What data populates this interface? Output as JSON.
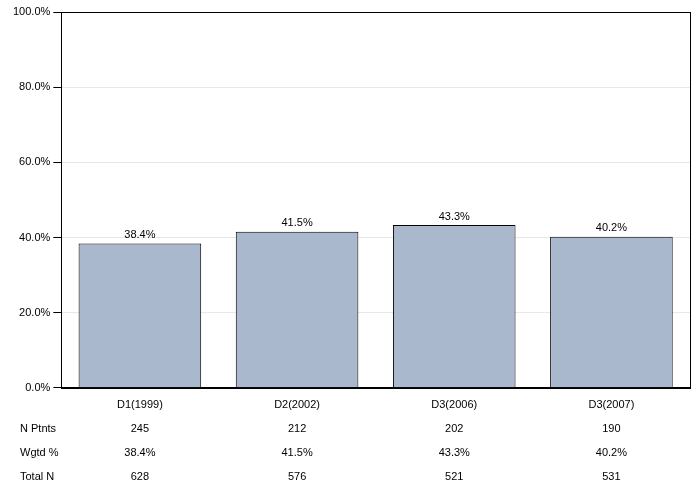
{
  "chart_data": {
    "type": "bar",
    "categories": [
      "D1(1999)",
      "D2(2002)",
      "D3(2006)",
      "D3(2007)"
    ],
    "values": [
      38.4,
      41.5,
      43.3,
      40.2
    ],
    "value_labels": [
      "38.4%",
      "41.5%",
      "43.3%",
      "40.2%"
    ],
    "color": "#a9b8cc",
    "ylim": [
      0,
      100
    ],
    "yticks": [
      {
        "value": 0,
        "label": "0.0%"
      },
      {
        "value": 20,
        "label": "20.0%"
      },
      {
        "value": 40,
        "label": "40.0%"
      },
      {
        "value": 60,
        "label": "60.0%"
      },
      {
        "value": 80,
        "label": "80.0%"
      },
      {
        "value": 100,
        "label": "100.0%"
      }
    ],
    "grid": true,
    "data_labels": true,
    "table": {
      "rows": [
        {
          "label": "N Ptnts",
          "values": [
            245,
            212,
            202,
            190
          ]
        },
        {
          "label": "Wgtd %",
          "values": [
            38.4,
            41.5,
            43.3,
            40.2
          ],
          "value_labels": [
            "38.4%",
            "41.5%",
            "43.3%",
            "40.2%"
          ]
        },
        {
          "label": "Total N",
          "values": [
            628,
            576,
            521,
            531
          ]
        }
      ]
    }
  }
}
